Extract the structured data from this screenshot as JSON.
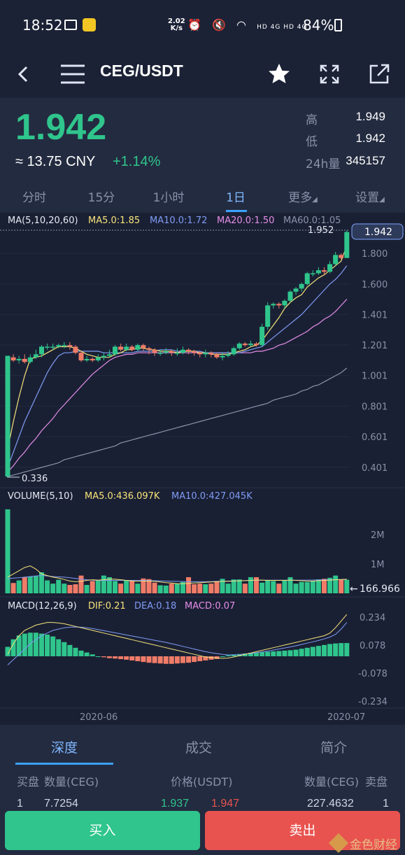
{
  "status_bar": {
    "time": "18:52",
    "net_speed_value": "2.02",
    "net_speed_unit": "K/s",
    "network_labels": "HD 4G HD 4G",
    "battery": "84%"
  },
  "header": {
    "title": "CEG/USDT"
  },
  "ticker": {
    "last_price": "1.942",
    "cny_price": "≈ 13.75 CNY",
    "change_pct": "+1.14%",
    "high_label": "高",
    "high_value": "1.949",
    "low_label": "低",
    "low_value": "1.942",
    "vol_label": "24h量",
    "vol_value": "345157"
  },
  "interval_tabs": [
    {
      "label": "分时",
      "active": false
    },
    {
      "label": "15分",
      "active": false
    },
    {
      "label": "1小时",
      "active": false
    },
    {
      "label": "1日",
      "active": true
    },
    {
      "label": "更多",
      "active": false
    },
    {
      "label": "设置",
      "active": false
    }
  ],
  "colors": {
    "up": "#2fc58c",
    "down": "#f07c68",
    "ma5": "#f7e47a",
    "ma10": "#7f9cf5",
    "ma20": "#e58ee8",
    "ma60": "#8a93ab"
  },
  "chart_data": {
    "type": "candlestick",
    "legends": {
      "main": {
        "title": "MA(5,10,20,60)",
        "ma5": "MA5.0:1.85",
        "ma10": "MA10.0:1.72",
        "ma20": "MA20.0:1.50",
        "ma60": "MA60.0:1.05"
      },
      "volume": {
        "title": "VOLUME(5,10)",
        "ma5": "MA5.0:436.097K",
        "ma10": "MA10.0:427.045K"
      },
      "macd": {
        "title": "MACD(12,26,9)",
        "dif": "DIF:0.21",
        "dea": "DEA:0.18",
        "macd": "MACD:0.07"
      }
    },
    "price_axis": [
      "1.800",
      "1.600",
      "1.401",
      "1.201",
      "1.001",
      "0.801",
      "0.601",
      "0.401"
    ],
    "price_ylim": [
      0.336,
      1.952
    ],
    "max_label": "1.952",
    "min_label": "0.336",
    "current_price_tag": "1.942",
    "volume_axis": [
      "2M",
      "1M"
    ],
    "volume_current_tag": "166.966",
    "macd_axis": [
      "0.234",
      "0.078",
      "-0.078",
      "-0.234"
    ],
    "dates": [
      "2020-06",
      "2020-07"
    ],
    "candles": [
      [
        0.34,
        1.13,
        0.34,
        1.13
      ],
      [
        1.12,
        1.1,
        1.09,
        1.14
      ],
      [
        1.1,
        1.11,
        1.08,
        1.13
      ],
      [
        1.11,
        1.09,
        1.08,
        1.14
      ],
      [
        1.09,
        1.12,
        1.08,
        1.14
      ],
      [
        1.12,
        1.14,
        1.11,
        1.17
      ],
      [
        1.14,
        1.19,
        1.12,
        1.2
      ],
      [
        1.19,
        1.19,
        1.17,
        1.21
      ],
      [
        1.19,
        1.19,
        1.17,
        1.21
      ],
      [
        1.19,
        1.2,
        1.18,
        1.21
      ],
      [
        1.2,
        1.2,
        1.18,
        1.22
      ],
      [
        1.2,
        1.19,
        1.17,
        1.22
      ],
      [
        1.19,
        1.15,
        1.14,
        1.2
      ],
      [
        1.15,
        1.1,
        1.09,
        1.16
      ],
      [
        1.1,
        1.11,
        1.09,
        1.13
      ],
      [
        1.11,
        1.1,
        1.09,
        1.12
      ],
      [
        1.1,
        1.12,
        1.09,
        1.14
      ],
      [
        1.12,
        1.13,
        1.1,
        1.15
      ],
      [
        1.13,
        1.14,
        1.12,
        1.17
      ],
      [
        1.14,
        1.19,
        1.13,
        1.2
      ],
      [
        1.19,
        1.17,
        1.16,
        1.21
      ],
      [
        1.17,
        1.19,
        1.16,
        1.21
      ],
      [
        1.19,
        1.17,
        1.16,
        1.2
      ],
      [
        1.17,
        1.2,
        1.16,
        1.21
      ],
      [
        1.2,
        1.18,
        1.16,
        1.21
      ],
      [
        1.18,
        1.17,
        1.14,
        1.19
      ],
      [
        1.17,
        1.15,
        1.13,
        1.18
      ],
      [
        1.15,
        1.15,
        1.13,
        1.17
      ],
      [
        1.15,
        1.16,
        1.14,
        1.18
      ],
      [
        1.16,
        1.15,
        1.13,
        1.17
      ],
      [
        1.15,
        1.15,
        1.13,
        1.18
      ],
      [
        1.15,
        1.17,
        1.14,
        1.19
      ],
      [
        1.17,
        1.16,
        1.14,
        1.18
      ],
      [
        1.16,
        1.15,
        1.13,
        1.17
      ],
      [
        1.15,
        1.14,
        1.12,
        1.16
      ],
      [
        1.14,
        1.15,
        1.12,
        1.17
      ],
      [
        1.15,
        1.14,
        1.12,
        1.16
      ],
      [
        1.14,
        1.12,
        1.11,
        1.15
      ],
      [
        1.12,
        1.13,
        1.1,
        1.15
      ],
      [
        1.13,
        1.14,
        1.12,
        1.16
      ],
      [
        1.14,
        1.18,
        1.13,
        1.19
      ],
      [
        1.18,
        1.21,
        1.17,
        1.22
      ],
      [
        1.21,
        1.2,
        1.19,
        1.22
      ],
      [
        1.2,
        1.21,
        1.19,
        1.23
      ],
      [
        1.21,
        1.2,
        1.19,
        1.22
      ],
      [
        1.2,
        1.32,
        1.19,
        1.34
      ],
      [
        1.32,
        1.46,
        1.3,
        1.48
      ],
      [
        1.46,
        1.47,
        1.44,
        1.48
      ],
      [
        1.47,
        1.46,
        1.44,
        1.48
      ],
      [
        1.46,
        1.49,
        1.44,
        1.5
      ],
      [
        1.49,
        1.55,
        1.48,
        1.56
      ],
      [
        1.55,
        1.57,
        1.53,
        1.58
      ],
      [
        1.57,
        1.6,
        1.55,
        1.61
      ],
      [
        1.6,
        1.67,
        1.59,
        1.68
      ],
      [
        1.67,
        1.67,
        1.65,
        1.69
      ],
      [
        1.67,
        1.69,
        1.66,
        1.71
      ],
      [
        1.69,
        1.68,
        1.66,
        1.71
      ],
      [
        1.68,
        1.73,
        1.67,
        1.75
      ],
      [
        1.73,
        1.79,
        1.72,
        1.81
      ],
      [
        1.79,
        1.77,
        1.76,
        1.8
      ],
      [
        1.77,
        1.94,
        1.77,
        1.95
      ]
    ],
    "ma5": [
      0.52,
      0.7,
      0.86,
      1.0,
      1.11,
      1.12,
      1.13,
      1.15,
      1.17,
      1.19,
      1.19,
      1.19,
      1.18,
      1.16,
      1.14,
      1.13,
      1.12,
      1.12,
      1.12,
      1.14,
      1.15,
      1.17,
      1.17,
      1.18,
      1.18,
      1.17,
      1.17,
      1.16,
      1.16,
      1.16,
      1.15,
      1.16,
      1.16,
      1.16,
      1.15,
      1.15,
      1.14,
      1.14,
      1.14,
      1.14,
      1.15,
      1.16,
      1.17,
      1.19,
      1.2,
      1.23,
      1.28,
      1.33,
      1.38,
      1.44,
      1.48,
      1.51,
      1.53,
      1.58,
      1.61,
      1.64,
      1.66,
      1.69,
      1.72,
      1.75,
      1.85
    ],
    "ma10": [
      0.4,
      0.5,
      0.6,
      0.7,
      0.78,
      0.86,
      0.94,
      1.02,
      1.08,
      1.13,
      1.15,
      1.15,
      1.16,
      1.16,
      1.16,
      1.16,
      1.16,
      1.15,
      1.15,
      1.15,
      1.15,
      1.15,
      1.15,
      1.16,
      1.16,
      1.16,
      1.16,
      1.17,
      1.17,
      1.17,
      1.16,
      1.16,
      1.16,
      1.16,
      1.16,
      1.15,
      1.15,
      1.15,
      1.15,
      1.15,
      1.15,
      1.15,
      1.16,
      1.17,
      1.18,
      1.19,
      1.22,
      1.25,
      1.28,
      1.31,
      1.34,
      1.37,
      1.4,
      1.44,
      1.48,
      1.52,
      1.56,
      1.6,
      1.63,
      1.67,
      1.72
    ],
    "ma20": [
      0.37,
      0.41,
      0.46,
      0.5,
      0.55,
      0.59,
      0.64,
      0.68,
      0.72,
      0.77,
      0.81,
      0.85,
      0.89,
      0.93,
      0.97,
      1.01,
      1.04,
      1.07,
      1.1,
      1.12,
      1.13,
      1.14,
      1.14,
      1.15,
      1.15,
      1.15,
      1.15,
      1.15,
      1.15,
      1.15,
      1.15,
      1.15,
      1.15,
      1.15,
      1.15,
      1.15,
      1.15,
      1.15,
      1.15,
      1.15,
      1.15,
      1.15,
      1.15,
      1.15,
      1.16,
      1.16,
      1.17,
      1.18,
      1.2,
      1.21,
      1.23,
      1.25,
      1.27,
      1.29,
      1.32,
      1.34,
      1.37,
      1.39,
      1.42,
      1.46,
      1.5
    ],
    "ma60": [
      0.34,
      0.35,
      0.36,
      0.37,
      0.38,
      0.39,
      0.4,
      0.41,
      0.42,
      0.43,
      0.45,
      0.46,
      0.47,
      0.48,
      0.49,
      0.5,
      0.51,
      0.52,
      0.53,
      0.54,
      0.56,
      0.57,
      0.58,
      0.59,
      0.6,
      0.61,
      0.62,
      0.63,
      0.64,
      0.65,
      0.66,
      0.67,
      0.68,
      0.69,
      0.7,
      0.71,
      0.72,
      0.73,
      0.74,
      0.75,
      0.76,
      0.77,
      0.78,
      0.79,
      0.8,
      0.81,
      0.82,
      0.84,
      0.85,
      0.86,
      0.87,
      0.88,
      0.9,
      0.91,
      0.93,
      0.94,
      0.96,
      0.98,
      1.0,
      1.02,
      1.05
    ],
    "volume": [
      2600,
      320,
      400,
      500,
      520,
      540,
      650,
      400,
      300,
      420,
      300,
      260,
      280,
      550,
      260,
      380,
      410,
      550,
      500,
      380,
      300,
      400,
      380,
      300,
      460,
      440,
      330,
      250,
      240,
      300,
      300,
      350,
      500,
      280,
      300,
      280,
      300,
      380,
      450,
      300,
      430,
      430,
      300,
      500,
      500,
      330,
      400,
      380,
      300,
      400,
      500,
      300,
      350,
      350,
      380,
      430,
      450,
      480,
      550,
      430,
      420
    ],
    "vol_ma5": [
      500,
      600,
      700,
      800,
      850,
      750,
      600,
      550,
      500,
      470,
      430,
      380,
      360,
      370,
      400,
      420,
      410,
      420,
      440,
      440,
      420,
      400,
      380,
      370,
      380,
      380,
      370,
      350,
      330,
      320,
      300,
      300,
      310,
      320,
      330,
      340,
      350,
      360,
      370,
      370,
      380,
      390,
      390,
      400,
      410,
      410,
      400,
      400,
      400,
      400,
      410,
      400,
      390,
      380,
      380,
      390,
      400,
      410,
      420,
      430,
      436
    ],
    "vol_ma10": [
      450,
      470,
      480,
      500,
      520,
      540,
      550,
      540,
      520,
      510,
      500,
      480,
      460,
      440,
      420,
      410,
      400,
      400,
      400,
      400,
      400,
      400,
      400,
      400,
      400,
      395,
      390,
      385,
      380,
      375,
      370,
      365,
      360,
      360,
      360,
      360,
      365,
      370,
      375,
      380,
      385,
      390,
      395,
      400,
      400,
      405,
      405,
      405,
      405,
      405,
      405,
      405,
      408,
      410,
      412,
      415,
      418,
      420,
      422,
      425,
      427
    ],
    "macd_hist": [
      0.05,
      0.09,
      0.11,
      0.12,
      0.125,
      0.125,
      0.12,
      0.115,
      0.105,
      0.09,
      0.075,
      0.06,
      0.045,
      0.03,
      0.02,
      0.01,
      0.0,
      -0.005,
      -0.01,
      -0.012,
      -0.015,
      -0.018,
      -0.022,
      -0.026,
      -0.03,
      -0.034,
      -0.036,
      -0.038,
      -0.04,
      -0.04,
      -0.038,
      -0.036,
      -0.034,
      -0.03,
      -0.026,
      -0.022,
      -0.018,
      -0.014,
      0.0,
      0.005,
      0.01,
      0.012,
      0.015,
      0.018,
      0.02,
      0.022,
      0.024,
      0.026,
      0.028,
      0.03,
      0.032,
      0.035,
      0.04,
      0.045,
      0.05,
      0.055,
      0.06,
      0.065,
      0.068,
      0.07,
      0.07
    ],
    "dif": [
      0.06,
      0.1,
      0.13,
      0.15,
      0.16,
      0.17,
      0.175,
      0.18,
      0.18,
      0.178,
      0.175,
      0.17,
      0.165,
      0.16,
      0.155,
      0.15,
      0.145,
      0.14,
      0.135,
      0.13,
      0.125,
      0.12,
      0.115,
      0.11,
      0.105,
      0.1,
      0.095,
      0.09,
      0.085,
      0.08,
      0.075,
      0.07,
      0.065,
      0.06,
      0.055,
      0.05,
      0.048,
      0.046,
      0.045,
      0.046,
      0.05,
      0.055,
      0.06,
      0.065,
      0.07,
      0.075,
      0.08,
      0.085,
      0.09,
      0.095,
      0.1,
      0.105,
      0.11,
      0.115,
      0.12,
      0.125,
      0.13,
      0.14,
      0.16,
      0.185,
      0.21
    ],
    "dea": [
      0.02,
      0.04,
      0.06,
      0.08,
      0.1,
      0.115,
      0.13,
      0.14,
      0.15,
      0.155,
      0.16,
      0.162,
      0.163,
      0.162,
      0.16,
      0.157,
      0.153,
      0.149,
      0.145,
      0.141,
      0.137,
      0.133,
      0.129,
      0.125,
      0.121,
      0.117,
      0.113,
      0.109,
      0.105,
      0.1,
      0.095,
      0.09,
      0.085,
      0.08,
      0.075,
      0.07,
      0.066,
      0.063,
      0.06,
      0.058,
      0.058,
      0.059,
      0.061,
      0.063,
      0.066,
      0.069,
      0.072,
      0.076,
      0.08,
      0.084,
      0.088,
      0.092,
      0.097,
      0.102,
      0.107,
      0.112,
      0.118,
      0.125,
      0.135,
      0.155,
      0.18
    ]
  },
  "bottom_tabs": [
    {
      "label": "深度",
      "active": true
    },
    {
      "label": "成交",
      "active": false
    },
    {
      "label": "简介",
      "active": false
    }
  ],
  "orderbook": {
    "col_bid": "买盘",
    "col_bid_qty": "数量(CEG)",
    "col_price": "价格(USDT)",
    "col_ask_qty": "数量(CEG)",
    "col_ask": "卖盘",
    "row1": {
      "bid_idx": "1",
      "bid_qty": "7.7254",
      "bid_price": "1.937",
      "ask_price": "1.947",
      "ask_qty": "227.4632",
      "ask_idx": "1"
    }
  },
  "actions": {
    "buy": "买入",
    "sell": "卖出"
  },
  "watermark": "金色财经"
}
